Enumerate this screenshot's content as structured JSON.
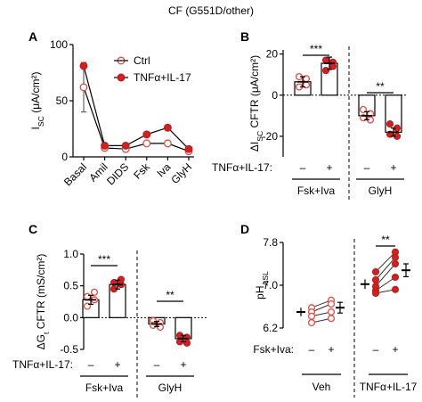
{
  "figure_title": "CF (G551D/other)",
  "legend": {
    "ctrl": "Ctrl",
    "tnf": "TNFα+IL-17"
  },
  "colors": {
    "ctrl_fill": "#ffffff",
    "ctrl_stroke": "#e8483f",
    "tnf_fill": "#d5201f",
    "tnf_stroke": "#c01a1a",
    "ink": "#000000"
  },
  "chart_data": [
    {
      "panel": "A",
      "type": "line",
      "ylabel": "I_SC (μA/cm²)",
      "ylim": [
        0,
        100
      ],
      "yticks": [
        0,
        50,
        100
      ],
      "categories": [
        "Basal",
        "Amil",
        "DIDS",
        "Fsk",
        "Iva",
        "GlyH"
      ],
      "series": [
        {
          "name": "Ctrl",
          "values": [
            62,
            8,
            7,
            12,
            12,
            5
          ],
          "sem_basal": 22
        },
        {
          "name": "TNFα+IL-17",
          "values": [
            81,
            10,
            10,
            20,
            26,
            7
          ]
        }
      ]
    },
    {
      "panel": "B",
      "type": "bar",
      "ylabel": "ΔI_SC CFTR (μA/cm²)",
      "ylim": [
        -30,
        22
      ],
      "yticks": [
        -20,
        0,
        20
      ],
      "treatment_label": "TNFα+IL-17:",
      "treatment_marks": [
        "–",
        "+",
        "–",
        "+"
      ],
      "groups": [
        "Fsk+Iva",
        "GlyH"
      ],
      "significance": [
        "***",
        "**"
      ],
      "bars": [
        {
          "group": "Fsk+Iva",
          "condition": "Ctrl",
          "value": 6.5,
          "sem": 2.5,
          "points": [
            4,
            5,
            9,
            8
          ]
        },
        {
          "group": "Fsk+Iva",
          "condition": "TNFα+IL-17",
          "value": 15.5,
          "sem": 3,
          "points": [
            12,
            16,
            17,
            14
          ]
        },
        {
          "group": "GlyH",
          "condition": "Ctrl",
          "value": -10,
          "sem": 2,
          "points": [
            -7,
            -9,
            -11,
            -12
          ]
        },
        {
          "group": "GlyH",
          "condition": "TNFα+IL-17",
          "value": -18,
          "sem": 2,
          "points": [
            -14,
            -16,
            -19,
            -20
          ]
        }
      ]
    },
    {
      "panel": "C",
      "type": "bar",
      "ylabel": "ΔG_t CFTR (mS/cm²)",
      "ylim": [
        -0.5,
        1.0
      ],
      "yticks": [
        -0.5,
        0.0,
        0.5,
        1.0
      ],
      "treatment_label": "TNFα+IL-17:",
      "treatment_marks": [
        "–",
        "+",
        "–",
        "+"
      ],
      "groups": [
        "Fsk+Iva",
        "GlyH"
      ],
      "significance": [
        "***",
        "**"
      ],
      "bars": [
        {
          "group": "Fsk+Iva",
          "condition": "Ctrl",
          "value": 0.28,
          "sem": 0.07,
          "points": [
            0.18,
            0.28,
            0.33,
            0.4
          ]
        },
        {
          "group": "Fsk+Iva",
          "condition": "TNFα+IL-17",
          "value": 0.52,
          "sem": 0.07,
          "points": [
            0.45,
            0.52,
            0.55,
            0.6
          ]
        },
        {
          "group": "GlyH",
          "condition": "Ctrl",
          "value": -0.1,
          "sem": 0.04,
          "points": [
            -0.05,
            -0.08,
            -0.12,
            -0.15
          ]
        },
        {
          "group": "GlyH",
          "condition": "TNFα+IL-17",
          "value": -0.33,
          "sem": 0.05,
          "points": [
            -0.28,
            -0.31,
            -0.38,
            -0.4
          ]
        }
      ]
    },
    {
      "panel": "D",
      "type": "scatter",
      "ylabel": "pH_ASL",
      "ylim": [
        6.2,
        7.8
      ],
      "yticks": [
        6.2,
        7.0,
        7.8
      ],
      "treatment_label": "Fsk+Iva:",
      "treatment_marks": [
        "–",
        "+",
        "–",
        "+"
      ],
      "groups": [
        "Veh",
        "TNFα+IL-17"
      ],
      "significance": [
        "",
        "**"
      ],
      "pairs": [
        {
          "group": "Veh",
          "before": [
            6.58,
            6.5,
            6.42,
            6.3
          ],
          "after": [
            6.72,
            6.65,
            6.5,
            6.38
          ],
          "mean_before": 6.5,
          "sem_before": 0.08,
          "mean_after": 6.58,
          "sem_after": 0.1
        },
        {
          "group": "TNFα+IL-17",
          "before": [
            7.25,
            7.1,
            6.98,
            6.9,
            6.85
          ],
          "after": [
            7.62,
            7.52,
            7.4,
            7.15,
            6.92
          ],
          "mean_before": 7.02,
          "sem_before": 0.09,
          "mean_after": 7.28,
          "sem_after": 0.12
        }
      ]
    }
  ]
}
